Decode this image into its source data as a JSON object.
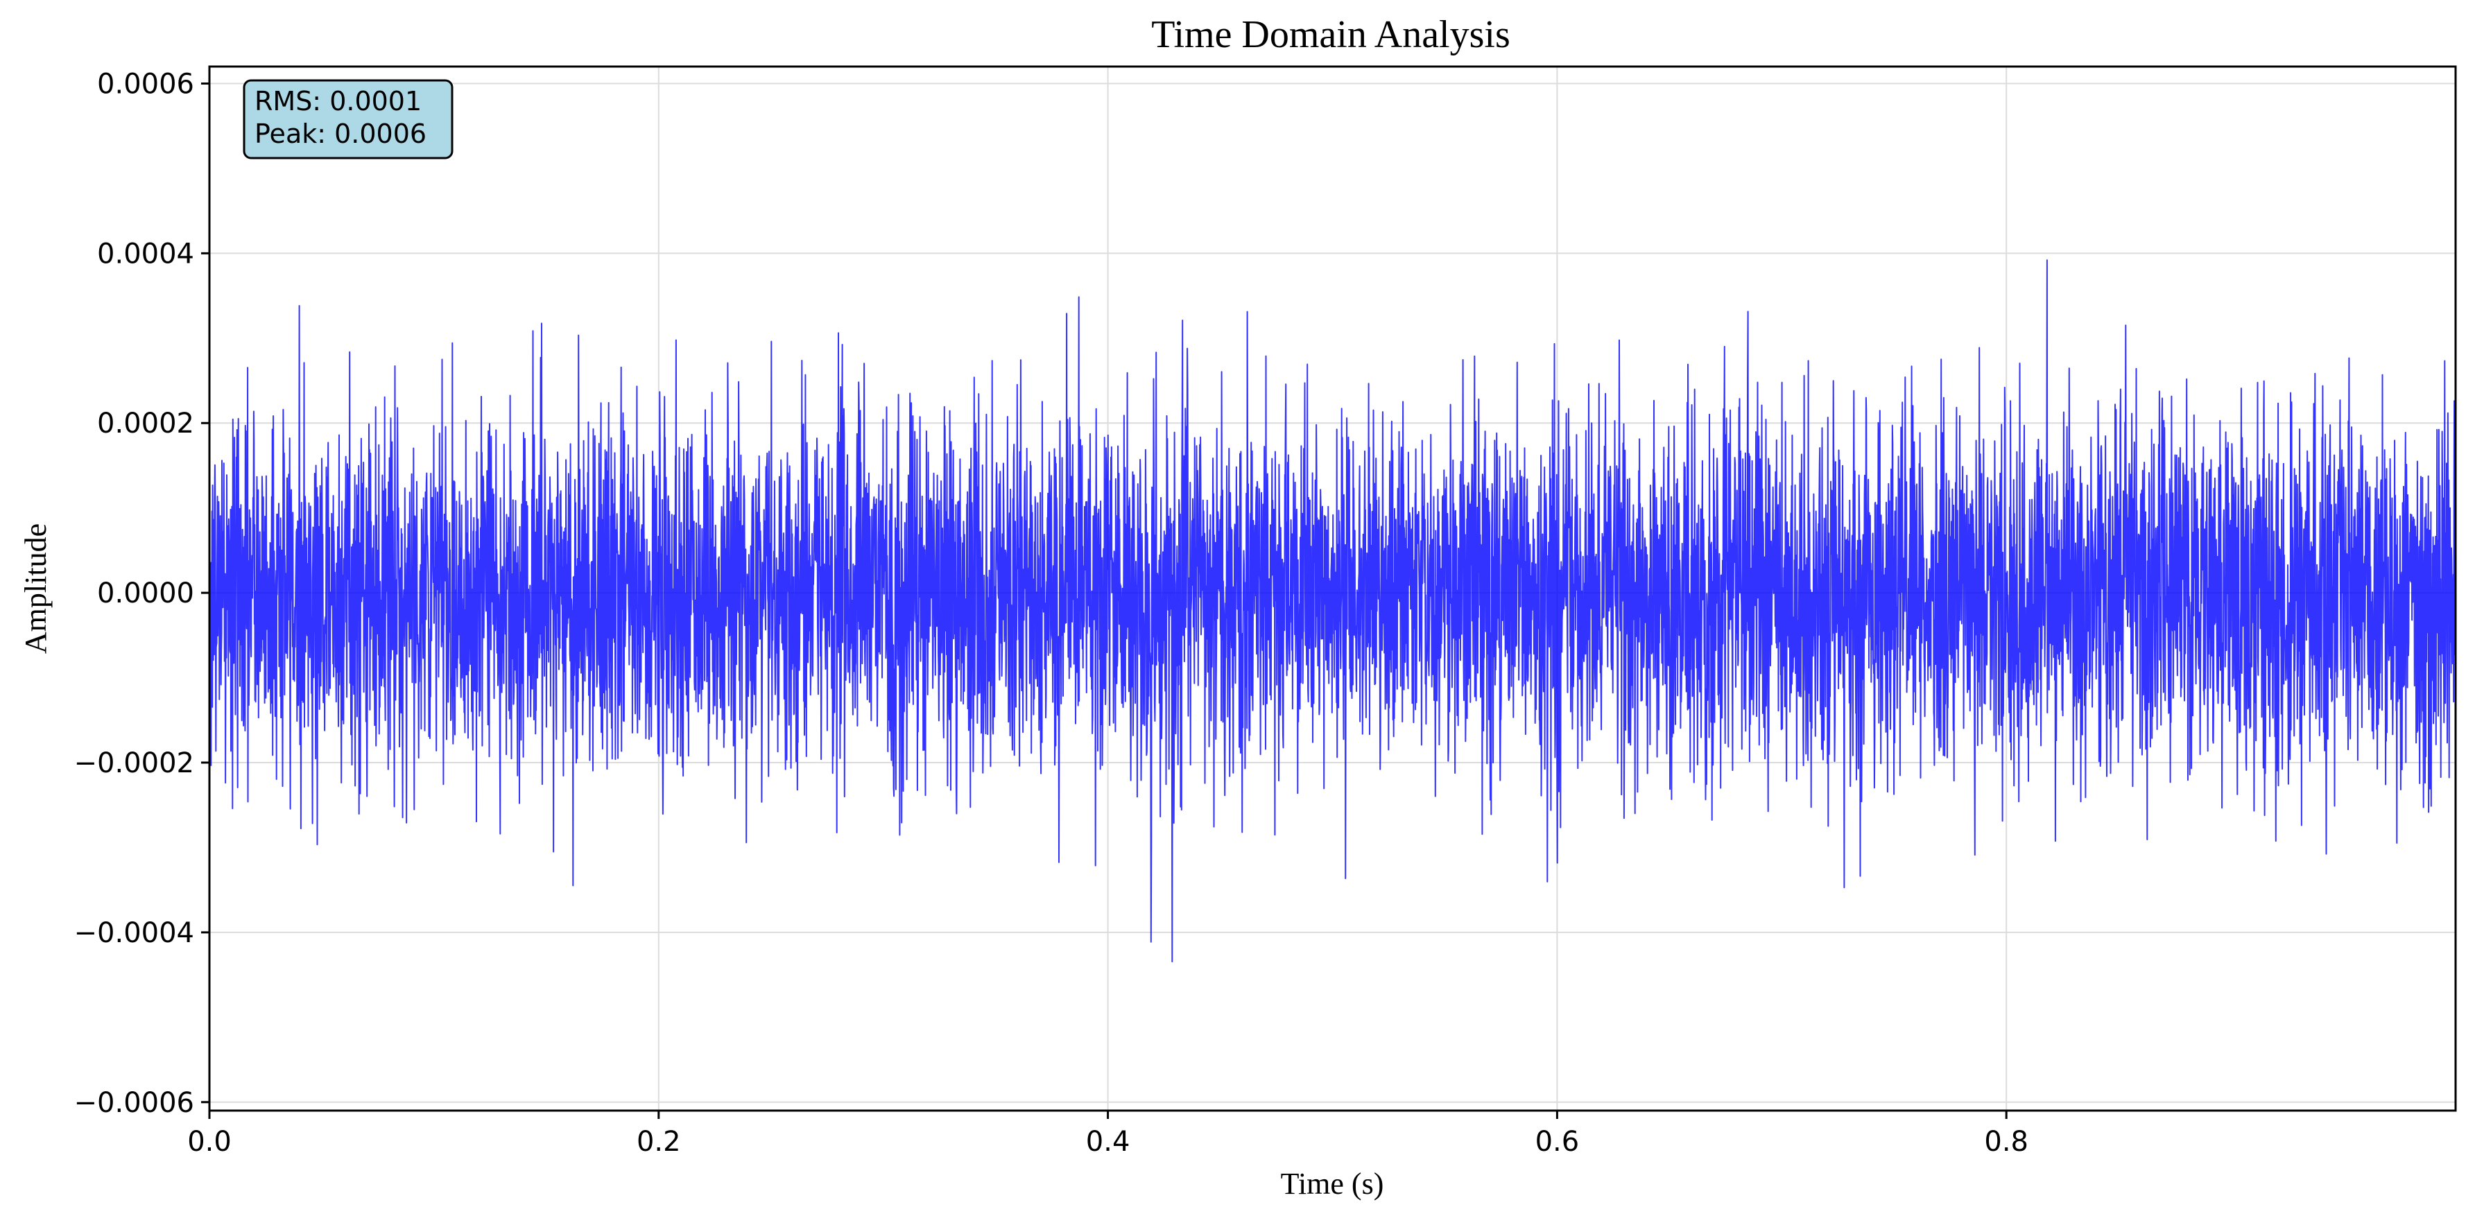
{
  "chart_data": {
    "type": "line",
    "title": "Time Domain Analysis",
    "xlabel": "Time (s)",
    "ylabel": "Amplitude",
    "xlim": [
      0.0,
      1.0
    ],
    "ylim": [
      -0.00061,
      0.00062
    ],
    "grid": true,
    "x_ticks": [
      0.0,
      0.2,
      0.4,
      0.6,
      0.8
    ],
    "x_tick_labels": [
      "0.0",
      "0.2",
      "0.4",
      "0.6",
      "0.8"
    ],
    "y_ticks": [
      -0.0006,
      -0.0004,
      -0.0002,
      0.0,
      0.0002,
      0.0004,
      0.0006
    ],
    "y_tick_labels": [
      "−0.0006",
      "−0.0004",
      "−0.0002",
      "0.0000",
      "0.0002",
      "0.0004",
      "0.0006"
    ],
    "series": [
      {
        "color": "#0000ff",
        "signal": {
          "kind": "noise",
          "x_start": 0.0,
          "x_end": 1.0,
          "rms": 0.0001,
          "peak": 0.0006
        }
      }
    ],
    "annotation": {
      "lines": [
        "RMS: 0.0001",
        "Peak: 0.0006"
      ],
      "placement": "top-left",
      "background": "#add8e6"
    }
  }
}
